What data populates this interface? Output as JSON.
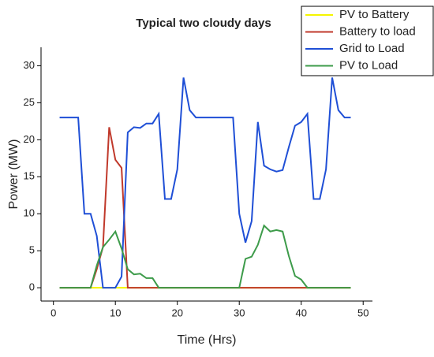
{
  "chart_data": {
    "type": "line",
    "title": "Typical two cloudy days",
    "xlabel": "Time (Hrs)",
    "ylabel": "Power (MW)",
    "x": [
      1,
      2,
      3,
      4,
      5,
      6,
      7,
      8,
      9,
      10,
      11,
      12,
      13,
      14,
      15,
      16,
      17,
      18,
      19,
      20,
      21,
      22,
      23,
      24,
      25,
      26,
      27,
      28,
      29,
      30,
      31,
      32,
      33,
      34,
      35,
      36,
      37,
      38,
      39,
      40,
      41,
      42,
      43,
      44,
      45,
      46,
      47,
      48
    ],
    "series": [
      {
        "name": "PV to Battery",
        "color": "#f5f500",
        "values": [
          0,
          0,
          0,
          0,
          0,
          0,
          0,
          0,
          0,
          0,
          0,
          0,
          0,
          0,
          0,
          0,
          0,
          0,
          0,
          0,
          0,
          0,
          0,
          0,
          0,
          0,
          0,
          0,
          0,
          0,
          0,
          0,
          0,
          0,
          0,
          0,
          0,
          0,
          0,
          0,
          0,
          0,
          0,
          0,
          0,
          0,
          0,
          0
        ]
      },
      {
        "name": "Battery to load",
        "color": "#c0392b",
        "values": [
          0,
          0,
          0,
          0,
          0,
          0,
          2.5,
          5.5,
          21.7,
          17.3,
          16.2,
          0,
          0,
          0,
          0,
          0,
          0,
          0,
          0,
          0,
          0,
          0,
          0,
          0,
          0,
          0,
          0,
          0,
          0,
          0,
          0,
          0,
          0,
          0,
          0,
          0,
          0,
          0,
          0,
          0,
          0,
          0,
          0,
          0,
          0,
          0,
          0,
          0
        ]
      },
      {
        "name": "Grid to Load",
        "color": "#1f4fd6",
        "values": [
          23,
          23,
          23,
          23,
          10,
          10,
          7,
          0,
          0,
          0,
          1.5,
          21,
          21.7,
          21.6,
          22.2,
          22.2,
          23.5,
          12,
          12,
          16,
          28.4,
          24,
          23,
          23,
          23,
          23,
          23,
          23,
          23,
          10,
          6.1,
          9,
          22.4,
          16.5,
          16,
          15.7,
          15.9,
          19,
          21.9,
          22.4,
          23.5,
          12,
          12,
          16,
          28.4,
          24,
          23,
          23
        ]
      },
      {
        "name": "PV to Load",
        "color": "#3d9b4a",
        "values": [
          0,
          0,
          0,
          0,
          0,
          0,
          3,
          5.5,
          6.5,
          7.6,
          5.3,
          2.5,
          1.8,
          1.9,
          1.3,
          1.3,
          0,
          0,
          0,
          0,
          0,
          0,
          0,
          0,
          0,
          0,
          0,
          0,
          0,
          0,
          3.9,
          4.2,
          5.8,
          8.4,
          7.6,
          7.8,
          7.6,
          4.3,
          1.6,
          1.1,
          0,
          0,
          0,
          0,
          0,
          0,
          0,
          0
        ]
      }
    ],
    "xlim": [
      -2,
      51.5
    ],
    "xticks": [
      0,
      10,
      20,
      30,
      40,
      50
    ],
    "ylim": [
      -1.8,
      32.5
    ],
    "yticks": [
      0,
      5,
      10,
      15,
      20,
      25,
      30
    ],
    "legend": "top-right"
  }
}
